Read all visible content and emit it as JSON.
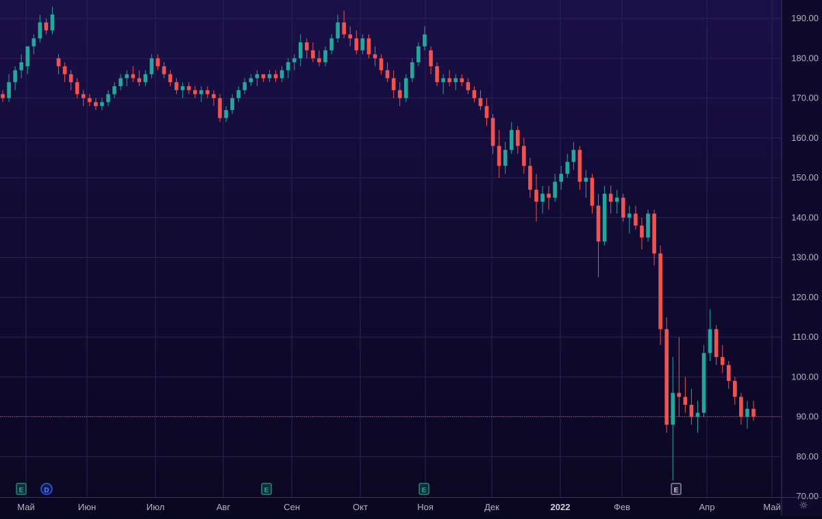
{
  "chart_data": {
    "type": "candlestick",
    "title": "",
    "xlabel": "",
    "ylabel": "",
    "ylim": [
      70,
      194
    ],
    "y_ticks": [
      "190.00",
      "180.00",
      "170.00",
      "160.00",
      "150.00",
      "140.00",
      "130.00",
      "120.00",
      "110.00",
      "100.00",
      "90.00",
      "80.00",
      "70.00"
    ],
    "x_ticks": [
      "Май",
      "Июн",
      "Июл",
      "Авг",
      "Сен",
      "Окт",
      "Ноя",
      "Дек",
      "2022",
      "Фев",
      "Апр",
      "Май"
    ],
    "grid": true,
    "current_price": 90.05,
    "current_price_label": "90.05",
    "colors": {
      "up": "#26a69a",
      "down": "#ef5350",
      "price_line": "#ef5350",
      "grid": "#2a2456",
      "axis_text": "#b2b5be"
    },
    "event_markers": [
      {
        "letter": "E",
        "kind": "earnings"
      },
      {
        "letter": "D",
        "kind": "dividend"
      },
      {
        "letter": "E",
        "kind": "earnings"
      },
      {
        "letter": "E",
        "kind": "earnings"
      },
      {
        "letter": "E",
        "kind": "earnings-upcoming"
      }
    ],
    "candles": [
      [
        171,
        172,
        169,
        170
      ],
      [
        170,
        176,
        169,
        174
      ],
      [
        174,
        178,
        172,
        177
      ],
      [
        177,
        181,
        175,
        179
      ],
      [
        178,
        183,
        176,
        183
      ],
      [
        183,
        186,
        181,
        185
      ],
      [
        185,
        191,
        184,
        189
      ],
      [
        189,
        190,
        186,
        187
      ],
      [
        187,
        193,
        186,
        191
      ],
      [
        180,
        181,
        176,
        178
      ],
      [
        178,
        179,
        174,
        176
      ],
      [
        176,
        177,
        172,
        174
      ],
      [
        174,
        175,
        170,
        171
      ],
      [
        171,
        172,
        168,
        170
      ],
      [
        170,
        171,
        168,
        169
      ],
      [
        169,
        170,
        167,
        168
      ],
      [
        168,
        170,
        167,
        169
      ],
      [
        169,
        172,
        168,
        171
      ],
      [
        171,
        174,
        170,
        173
      ],
      [
        173,
        176,
        172,
        175
      ],
      [
        175,
        177,
        173,
        176
      ],
      [
        176,
        178,
        174,
        175
      ],
      [
        175,
        177,
        173,
        174
      ],
      [
        174,
        177,
        173,
        176
      ],
      [
        176,
        181,
        175,
        180
      ],
      [
        180,
        181,
        177,
        178
      ],
      [
        178,
        179,
        175,
        176
      ],
      [
        176,
        177,
        173,
        174
      ],
      [
        174,
        175,
        171,
        172
      ],
      [
        172,
        174,
        170,
        173
      ],
      [
        173,
        174,
        171,
        172
      ],
      [
        172,
        173,
        170,
        171
      ],
      [
        171,
        173,
        169,
        172
      ],
      [
        172,
        173,
        170,
        171
      ],
      [
        171,
        172,
        168,
        170
      ],
      [
        170,
        171,
        164,
        165
      ],
      [
        165,
        168,
        164,
        167
      ],
      [
        167,
        171,
        166,
        170
      ],
      [
        170,
        173,
        169,
        172
      ],
      [
        172,
        175,
        171,
        174
      ],
      [
        174,
        176,
        173,
        175
      ],
      [
        175,
        177,
        173,
        176
      ],
      [
        176,
        176,
        174,
        175
      ],
      [
        175,
        177,
        174,
        176
      ],
      [
        176,
        177,
        174,
        175
      ],
      [
        175,
        178,
        174,
        177
      ],
      [
        177,
        180,
        175,
        179
      ],
      [
        179,
        181,
        177,
        180
      ],
      [
        180,
        186,
        178,
        184
      ],
      [
        184,
        185,
        180,
        182
      ],
      [
        182,
        184,
        179,
        180
      ],
      [
        180,
        182,
        178,
        179
      ],
      [
        179,
        183,
        178,
        182
      ],
      [
        182,
        186,
        181,
        185
      ],
      [
        185,
        191,
        184,
        189
      ],
      [
        189,
        192,
        185,
        186
      ],
      [
        186,
        188,
        183,
        185
      ],
      [
        185,
        187,
        181,
        182
      ],
      [
        182,
        186,
        181,
        185
      ],
      [
        185,
        186,
        180,
        181
      ],
      [
        181,
        183,
        178,
        180
      ],
      [
        180,
        181,
        176,
        177
      ],
      [
        177,
        179,
        174,
        175
      ],
      [
        175,
        177,
        170,
        172
      ],
      [
        172,
        174,
        168,
        170
      ],
      [
        170,
        176,
        169,
        175
      ],
      [
        175,
        180,
        174,
        179
      ],
      [
        179,
        184,
        178,
        183
      ],
      [
        183,
        188,
        182,
        186
      ],
      [
        182,
        183,
        176,
        178
      ],
      [
        178,
        179,
        173,
        174
      ],
      [
        174,
        176,
        171,
        175
      ],
      [
        175,
        177,
        173,
        174
      ],
      [
        174,
        176,
        172,
        175
      ],
      [
        175,
        176,
        173,
        174
      ],
      [
        174,
        175,
        171,
        172
      ],
      [
        172,
        173,
        169,
        170
      ],
      [
        170,
        172,
        167,
        168
      ],
      [
        168,
        170,
        163,
        165
      ],
      [
        165,
        166,
        156,
        158
      ],
      [
        158,
        162,
        150,
        153
      ],
      [
        153,
        159,
        151,
        157
      ],
      [
        157,
        164,
        156,
        162
      ],
      [
        162,
        163,
        156,
        158
      ],
      [
        158,
        160,
        151,
        153
      ],
      [
        153,
        155,
        145,
        147
      ],
      [
        147,
        151,
        139,
        144
      ],
      [
        144,
        148,
        141,
        146
      ],
      [
        146,
        148,
        142,
        145
      ],
      [
        145,
        151,
        144,
        149
      ],
      [
        149,
        153,
        147,
        151
      ],
      [
        151,
        156,
        150,
        154
      ],
      [
        154,
        159,
        152,
        157
      ],
      [
        157,
        158,
        147,
        149
      ],
      [
        149,
        152,
        145,
        150
      ],
      [
        150,
        151,
        141,
        143
      ],
      [
        143,
        146,
        125,
        134
      ],
      [
        134,
        148,
        133,
        146
      ],
      [
        146,
        148,
        141,
        144
      ],
      [
        144,
        147,
        141,
        145
      ],
      [
        145,
        146,
        139,
        140
      ],
      [
        140,
        143,
        136,
        141
      ],
      [
        141,
        143,
        137,
        138
      ],
      [
        138,
        140,
        132,
        135
      ],
      [
        135,
        142,
        134,
        141
      ],
      [
        141,
        142,
        128,
        131
      ],
      [
        131,
        133,
        108,
        112
      ],
      [
        112,
        115,
        86,
        88
      ],
      [
        88,
        105,
        74,
        96
      ],
      [
        96,
        110,
        90,
        95
      ],
      [
        95,
        100,
        91,
        93
      ],
      [
        93,
        97,
        88,
        90
      ],
      [
        90,
        94,
        86,
        91
      ],
      [
        91,
        108,
        90,
        106
      ],
      [
        106,
        117,
        104,
        112
      ],
      [
        112,
        113,
        103,
        105
      ],
      [
        105,
        108,
        101,
        103
      ],
      [
        103,
        104,
        97,
        99
      ],
      [
        99,
        100,
        93,
        95
      ],
      [
        95,
        96,
        88,
        90
      ],
      [
        90,
        94,
        87,
        92
      ],
      [
        92,
        94,
        89,
        90.05
      ]
    ]
  }
}
